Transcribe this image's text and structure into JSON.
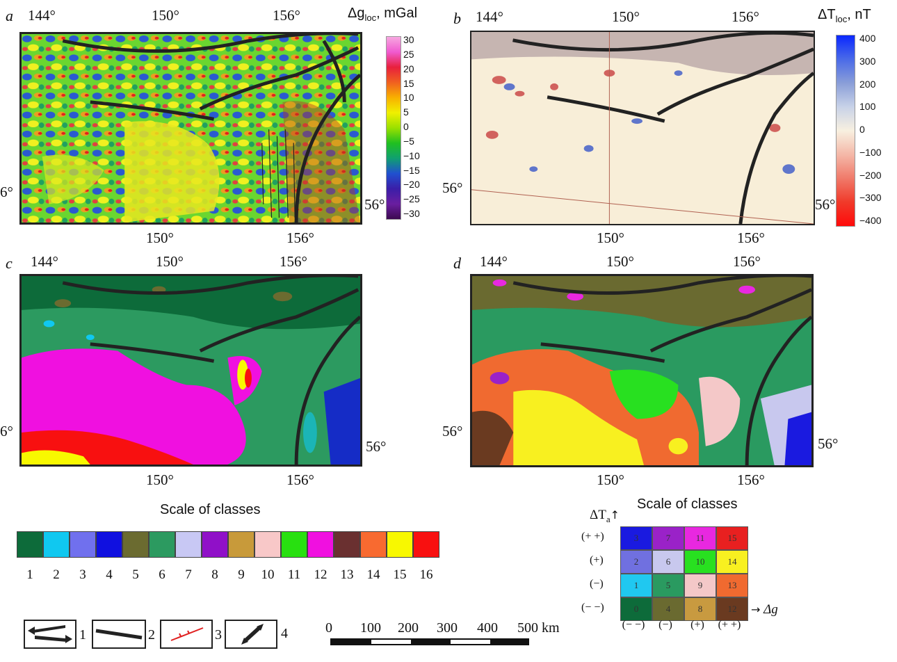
{
  "panels": {
    "a": {
      "letter": "a",
      "title_prefix": "Δg",
      "title_sub": "loc",
      "title_suffix": ", mGal",
      "top_lons": [
        "144°",
        "150°",
        "156°"
      ],
      "bottom_lons": [
        "150°",
        "156°"
      ],
      "left_lat": "6°",
      "right_lat": "56°"
    },
    "b": {
      "letter": "b",
      "title_prefix": "ΔT",
      "title_sub": "loc",
      "title_suffix": ", nT",
      "top_lons": [
        "144°",
        "150°",
        "156°"
      ],
      "bottom_lons": [
        "150°",
        "156°"
      ],
      "left_lat": "56°",
      "right_lat": "56°"
    },
    "c": {
      "letter": "c",
      "top_lons": [
        "144°",
        "150°",
        "156°"
      ],
      "bottom_lons": [
        "150°",
        "156°"
      ],
      "left_lat": "6°",
      "right_lat": "56°"
    },
    "d": {
      "letter": "d",
      "top_lons": [
        "144°",
        "150°",
        "156°"
      ],
      "bottom_lons": [
        "150°",
        "156°"
      ],
      "left_lat": "56°",
      "right_lat": "56°"
    }
  },
  "colorbar_a": {
    "ticks": [
      "30",
      "25",
      "20",
      "15",
      "10",
      "5",
      "0",
      "−5",
      "−10",
      "−15",
      "−20",
      "−25",
      "−30"
    ],
    "colors": [
      "#f7a8e0",
      "#f05ad0",
      "#e8203c",
      "#f06020",
      "#f8b000",
      "#f0f000",
      "#9ae000",
      "#20c020",
      "#10a070",
      "#2050d0",
      "#3a1ea8",
      "#6a1ea0",
      "#3c0a50"
    ]
  },
  "colorbar_b": {
    "ticks": [
      "400",
      "300",
      "200",
      "100",
      "0",
      "−100",
      "−200",
      "−300",
      "−400"
    ],
    "colors": [
      "#0a28ff",
      "#4a6ae8",
      "#8a9ed8",
      "#c8d2e8",
      "#f8f0e0",
      "#f4b8a8",
      "#f07a6a",
      "#f03a2a",
      "#ff0a0a"
    ]
  },
  "scale_of_classes_c": {
    "title": "Scale of classes",
    "classes": [
      {
        "num": "1",
        "color": "#0d6b3a"
      },
      {
        "num": "2",
        "color": "#10c8f0"
      },
      {
        "num": "3",
        "color": "#7070ee"
      },
      {
        "num": "4",
        "color": "#1010e0"
      },
      {
        "num": "5",
        "color": "#6b6b30"
      },
      {
        "num": "6",
        "color": "#2c9a60"
      },
      {
        "num": "7",
        "color": "#c8c8f4"
      },
      {
        "num": "8",
        "color": "#9010c8"
      },
      {
        "num": "9",
        "color": "#c89a3a"
      },
      {
        "num": "10",
        "color": "#f8c8c8"
      },
      {
        "num": "11",
        "color": "#28e010"
      },
      {
        "num": "12",
        "color": "#f010e0"
      },
      {
        "num": "13",
        "color": "#6a3030"
      },
      {
        "num": "14",
        "color": "#f86a30"
      },
      {
        "num": "15",
        "color": "#f8f800"
      },
      {
        "num": "16",
        "color": "#f81010"
      }
    ]
  },
  "scale_of_classes_d": {
    "title": "Scale of classes",
    "y_axis": "ΔT",
    "y_axis_sub": "a",
    "x_axis": "Δg",
    "row_labels": [
      "(+ +)",
      "(+)",
      "(−)",
      "(− −)"
    ],
    "col_labels": [
      "(− −)",
      "(−)",
      "(+)",
      "(+ +)"
    ],
    "grid": [
      [
        {
          "num": "3",
          "color": "#1a1ae0"
        },
        {
          "num": "7",
          "color": "#9a22c8"
        },
        {
          "num": "11",
          "color": "#e828e0"
        },
        {
          "num": "15",
          "color": "#e82020"
        }
      ],
      [
        {
          "num": "2",
          "color": "#7070e0"
        },
        {
          "num": "6",
          "color": "#c8c8ee"
        },
        {
          "num": "10",
          "color": "#28e020"
        },
        {
          "num": "14",
          "color": "#f8f020"
        }
      ],
      [
        {
          "num": "1",
          "color": "#20c8f0"
        },
        {
          "num": "5",
          "color": "#2a9a60"
        },
        {
          "num": "9",
          "color": "#f4c8c8"
        },
        {
          "num": "13",
          "color": "#f06a30"
        }
      ],
      [
        {
          "num": "0",
          "color": "#0d6b3a"
        },
        {
          "num": "4",
          "color": "#6a6a30"
        },
        {
          "num": "8",
          "color": "#c89a40"
        },
        {
          "num": "12",
          "color": "#6a3a20"
        }
      ]
    ]
  },
  "legend": {
    "items": [
      "1",
      "2",
      "3",
      "4"
    ]
  },
  "scale_bar": {
    "labels": [
      "0",
      "100",
      "200",
      "300",
      "400",
      "500 km"
    ]
  }
}
